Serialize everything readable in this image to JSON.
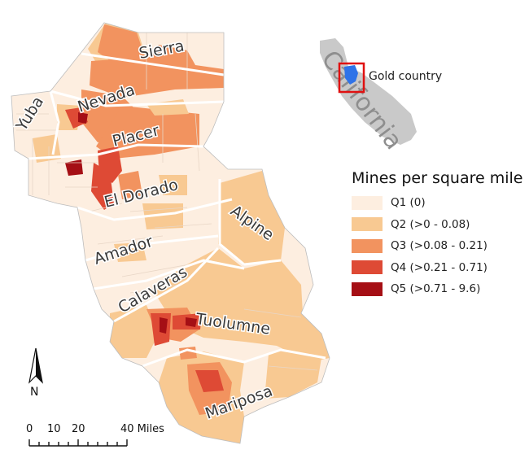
{
  "map": {
    "counties": [
      "Sierra",
      "Nevada",
      "Yuba",
      "Placer",
      "El Dorado",
      "Alpine",
      "Amador",
      "Calaveras",
      "Tuolumne",
      "Mariposa"
    ]
  },
  "inset": {
    "state_label": "California",
    "region_label": "Gold country",
    "colors": {
      "state": "#c9c9c9",
      "region": "#2f73e8",
      "box": "#e01010"
    }
  },
  "legend": {
    "title": "Mines per square mile",
    "classes": [
      {
        "label": "Q1 (0)",
        "color": "#fdeee0"
      },
      {
        "label": "Q2 (>0 - 0.08)",
        "color": "#f8c992"
      },
      {
        "label": "Q3 (>0.08 - 0.21)",
        "color": "#f2935f"
      },
      {
        "label": "Q4 (>0.21 - 0.71)",
        "color": "#de4a35"
      },
      {
        "label": "Q5 (>0.71 - 9.6)",
        "color": "#a50f15"
      }
    ]
  },
  "north_arrow": {
    "label": "N"
  },
  "scale_bar": {
    "ticks": [
      "0",
      "10",
      "20",
      "40 Miles"
    ]
  }
}
